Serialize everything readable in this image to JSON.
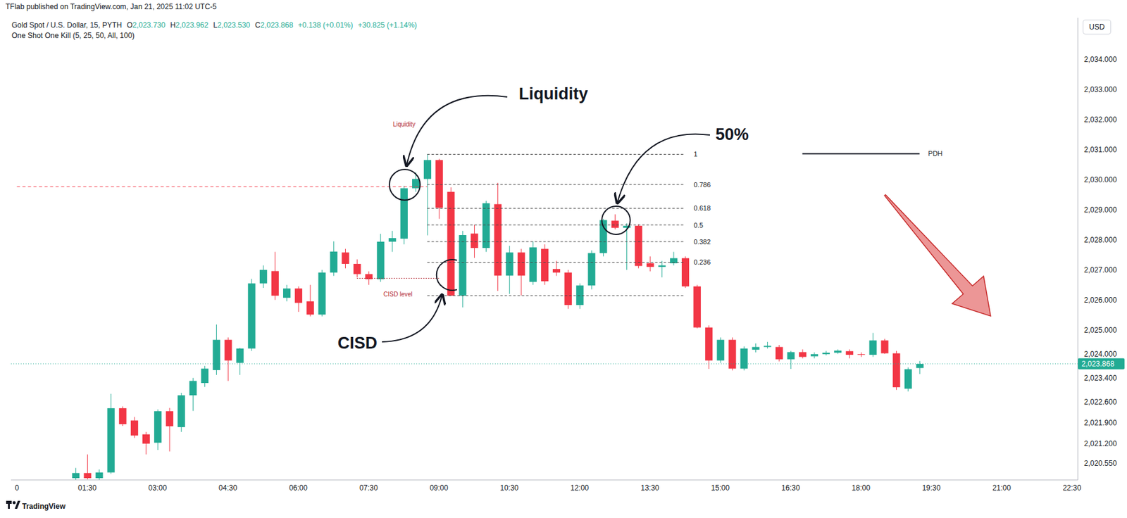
{
  "header": {
    "publisher": "TFlab published on TradingView.com, Jan 21, 2025 11:02 UTC-5",
    "brand": "TradingView"
  },
  "chart_data": {
    "type": "candlestick",
    "title": "Gold Spot / U.S. Dollar, 15, PYTH",
    "ohlc_legend": [
      {
        "key": "O",
        "text": "2,023.730"
      },
      {
        "key": "H",
        "text": "2,023.962"
      },
      {
        "key": "L",
        "text": "2,023.530"
      },
      {
        "key": "C",
        "text": "2,023.868"
      }
    ],
    "change_legend": [
      "+0.138 (+0.01%)",
      "+30.825 (+1.14%)"
    ],
    "indicator": "One Shot One Kill (5, 25, 50, All, 100)",
    "currency": "USD",
    "categories": [
      "0",
      null,
      null,
      null,
      null,
      null,
      "01:30",
      null,
      null,
      null,
      null,
      null,
      "03:00",
      null,
      null,
      null,
      null,
      null,
      "04:30",
      null,
      null,
      null,
      null,
      null,
      "06:00",
      null,
      null,
      null,
      null,
      null,
      "07:30",
      null,
      null,
      null,
      null,
      null,
      "09:00",
      null,
      null,
      null,
      null,
      null,
      "10:30",
      null,
      null,
      null,
      null,
      null,
      "12:00",
      null,
      null,
      null,
      null,
      null,
      "13:30",
      null,
      null,
      null,
      null,
      null,
      "15:00",
      null,
      null,
      null,
      null,
      null,
      "16:30",
      null,
      null,
      null,
      null,
      null,
      "18:00",
      null,
      null,
      null,
      null,
      null,
      "19:30",
      null,
      null,
      null,
      null,
      null,
      "21:00",
      null,
      null,
      null,
      null,
      null,
      "22:30"
    ],
    "ohlc": [
      null,
      null,
      null,
      null,
      null,
      [
        2020.06,
        2020.4,
        2020.0,
        2020.23
      ],
      [
        2020.23,
        2020.85,
        2020.02,
        2020.06
      ],
      [
        2020.06,
        2020.35,
        2020.0,
        2020.25
      ],
      [
        2020.25,
        2022.87,
        2020.2,
        2022.39
      ],
      [
        2022.39,
        2022.45,
        2021.8,
        2021.86
      ],
      [
        2021.98,
        2022.1,
        2021.4,
        2021.48
      ],
      [
        2021.52,
        2021.6,
        2020.85,
        2021.21
      ],
      [
        2021.24,
        2022.35,
        2021.0,
        2022.29
      ],
      [
        2022.29,
        2022.4,
        2020.95,
        2021.79
      ],
      [
        2021.76,
        2022.9,
        2021.6,
        2022.82
      ],
      [
        2022.82,
        2023.4,
        2022.3,
        2023.3
      ],
      [
        2023.23,
        2023.8,
        2023.1,
        2023.71
      ],
      [
        2023.66,
        2025.18,
        2023.5,
        2024.67
      ],
      [
        2024.67,
        2024.75,
        2023.3,
        2023.98
      ],
      [
        2023.9,
        2024.4,
        2023.5,
        2024.38
      ],
      [
        2024.38,
        2026.7,
        2024.3,
        2026.55
      ],
      [
        2026.55,
        2027.15,
        2026.4,
        2027.0
      ],
      [
        2026.96,
        2027.6,
        2026.0,
        2026.14
      ],
      [
        2026.07,
        2026.5,
        2025.95,
        2026.38
      ],
      [
        2026.38,
        2026.45,
        2025.6,
        2025.9
      ],
      [
        2025.95,
        2026.5,
        2025.45,
        2025.51
      ],
      [
        2025.51,
        2027.0,
        2025.45,
        2026.91
      ],
      [
        2026.91,
        2027.95,
        2026.8,
        2027.61
      ],
      [
        2027.58,
        2027.7,
        2027.05,
        2027.2
      ],
      [
        2027.2,
        2027.35,
        2026.75,
        2026.86
      ],
      [
        2026.86,
        2026.95,
        2026.5,
        2026.69
      ],
      [
        2026.69,
        2028.2,
        2026.6,
        2027.94
      ],
      [
        2027.94,
        2028.3,
        2027.6,
        2028.06
      ],
      [
        2028.04,
        2029.8,
        2027.85,
        2029.72
      ],
      [
        2029.72,
        2030.25,
        2029.6,
        2030.03
      ],
      [
        2030.03,
        2030.85,
        2028.15,
        2030.66
      ],
      [
        2030.66,
        2030.7,
        2028.7,
        2029.07
      ],
      [
        2029.6,
        2029.75,
        2026.14,
        2026.14
      ],
      [
        2026.14,
        2028.3,
        2025.75,
        2028.16
      ],
      [
        2028.21,
        2028.5,
        2027.4,
        2027.73
      ],
      [
        2027.73,
        2029.3,
        2027.6,
        2029.22
      ],
      [
        2029.19,
        2029.9,
        2026.3,
        2026.81
      ],
      [
        2026.81,
        2027.8,
        2026.2,
        2027.58
      ],
      [
        2027.58,
        2027.7,
        2026.15,
        2026.81
      ],
      [
        2026.6,
        2027.95,
        2026.5,
        2027.75
      ],
      [
        2027.7,
        2027.85,
        2026.5,
        2026.62
      ],
      [
        2027.03,
        2027.3,
        2026.8,
        2026.91
      ],
      [
        2026.91,
        2027.0,
        2025.7,
        2025.83
      ],
      [
        2025.83,
        2026.55,
        2025.7,
        2026.48
      ],
      [
        2026.48,
        2027.65,
        2026.35,
        2027.56
      ],
      [
        2027.56,
        2028.7,
        2027.45,
        2028.66
      ],
      [
        2028.64,
        2028.85,
        2028.35,
        2028.4
      ],
      [
        2028.4,
        2028.55,
        2027.0,
        2028.47
      ],
      [
        2028.47,
        2028.52,
        2027.05,
        2027.13
      ],
      [
        2027.22,
        2027.45,
        2026.95,
        2027.1
      ],
      [
        2027.1,
        2027.3,
        2026.75,
        2027.15
      ],
      [
        2027.22,
        2027.6,
        2027.15,
        2027.39
      ],
      [
        2027.39,
        2027.45,
        2026.4,
        2026.45
      ],
      [
        2026.45,
        2026.5,
        2025.05,
        2025.08
      ],
      [
        2025.08,
        2025.15,
        2023.7,
        2023.98
      ],
      [
        2023.98,
        2024.75,
        2023.9,
        2024.67
      ],
      [
        2024.67,
        2024.75,
        2023.65,
        2023.71
      ],
      [
        2023.71,
        2024.45,
        2023.65,
        2024.38
      ],
      [
        2024.34,
        2024.55,
        2024.25,
        2024.43
      ],
      [
        2024.43,
        2024.6,
        2024.38,
        2024.47
      ],
      [
        2024.43,
        2024.5,
        2023.95,
        2024.02
      ],
      [
        2024.02,
        2024.3,
        2023.7,
        2024.26
      ],
      [
        2024.26,
        2024.35,
        2024.05,
        2024.1
      ],
      [
        2024.12,
        2024.25,
        2024.05,
        2024.19
      ],
      [
        2024.19,
        2024.3,
        2024.15,
        2024.24
      ],
      [
        2024.24,
        2024.35,
        2024.2,
        2024.31
      ],
      [
        2024.29,
        2024.35,
        2024.05,
        2024.17
      ],
      [
        2024.19,
        2024.25,
        2024.1,
        2024.17
      ],
      [
        2024.17,
        2024.9,
        2024.1,
        2024.65
      ],
      [
        2024.65,
        2024.7,
        2024.2,
        2024.22
      ],
      [
        2024.22,
        2024.3,
        2023.0,
        2023.09
      ],
      [
        2023.04,
        2023.75,
        2022.95,
        2023.69
      ],
      [
        2023.73,
        2023.962,
        2023.53,
        2023.868
      ],
      null,
      null,
      null,
      null,
      null,
      null,
      null,
      null,
      null,
      null,
      null,
      null,
      null
    ],
    "ylim": [
      2020.0,
      2035.4
    ],
    "yticks": [
      {
        "value": 2034,
        "label": "2,034.000"
      },
      {
        "value": 2033,
        "label": "2,033.000"
      },
      {
        "value": 2032,
        "label": "2,032.000"
      },
      {
        "value": 2031,
        "label": "2,031.000"
      },
      {
        "value": 2030,
        "label": "2,030.000"
      },
      {
        "value": 2029,
        "label": "2,029.000"
      },
      {
        "value": 2028,
        "label": "2,028.000"
      },
      {
        "value": 2027,
        "label": "2,027.000"
      },
      {
        "value": 2026,
        "label": "2,026.000"
      },
      {
        "value": 2025,
        "label": "2,025.000"
      },
      {
        "value": 2024,
        "label": "2,024.000"
      },
      {
        "value": 2023.4,
        "label": "2,023.400"
      },
      {
        "value": 2022.6,
        "label": "2,022.600"
      },
      {
        "value": 2021.9,
        "label": "2,021.900"
      },
      {
        "value": 2021.2,
        "label": "2,021.200"
      },
      {
        "value": 2020.55,
        "label": "2,020.550"
      }
    ],
    "grid": false,
    "last_price": {
      "value": 2023.868,
      "label": "2,023.868"
    },
    "annotations": {
      "liquidity": {
        "text": "Liquidity",
        "tag": "Liquidity",
        "price": 2029.77
      },
      "cisd": {
        "text": "CISD",
        "tag": "CISD level",
        "price": 2026.72
      },
      "fibonacci": {
        "price_0": 2026.14,
        "price_1": 2030.85,
        "levels": [
          1,
          0.786,
          0.618,
          0.5,
          0.382,
          0.236
        ],
        "callout": "50%"
      },
      "pdh": {
        "text": "PDH",
        "price": 2030.87
      }
    }
  }
}
